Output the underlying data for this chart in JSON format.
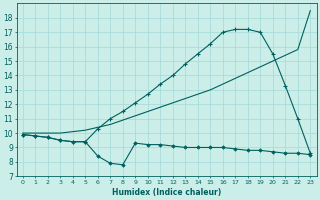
{
  "xlabel": "Humidex (Indice chaleur)",
  "bg_color": "#cceee8",
  "line_color": "#006060",
  "grid_color": "#aaddda",
  "xlim": [
    -0.5,
    23.5
  ],
  "ylim": [
    7,
    19
  ],
  "xticks": [
    0,
    1,
    2,
    3,
    4,
    5,
    6,
    7,
    8,
    9,
    10,
    11,
    12,
    13,
    14,
    15,
    16,
    17,
    18,
    19,
    20,
    21,
    22,
    23
  ],
  "yticks": [
    7,
    8,
    9,
    10,
    11,
    12,
    13,
    14,
    15,
    16,
    17,
    18
  ],
  "line1_x": [
    0,
    1,
    2,
    3,
    4,
    5,
    6,
    7,
    8,
    9,
    10,
    11,
    12,
    13,
    14,
    15,
    16,
    17,
    18,
    19,
    20,
    21,
    22,
    23
  ],
  "line1_y": [
    9.9,
    9.8,
    9.7,
    9.5,
    9.4,
    9.4,
    8.4,
    7.9,
    7.8,
    9.3,
    9.2,
    9.2,
    9.1,
    9.0,
    9.0,
    9.0,
    9.0,
    8.9,
    8.8,
    8.8,
    8.7,
    8.6,
    8.6,
    8.5
  ],
  "line2_x": [
    0,
    1,
    2,
    3,
    4,
    5,
    6,
    7,
    8,
    9,
    10,
    11,
    12,
    13,
    14,
    15,
    16,
    17,
    18,
    19,
    20,
    21,
    22,
    23
  ],
  "line2_y": [
    10.0,
    10.0,
    10.0,
    10.0,
    10.1,
    10.2,
    10.4,
    10.6,
    10.9,
    11.2,
    11.5,
    11.8,
    12.1,
    12.4,
    12.7,
    13.0,
    13.4,
    13.8,
    14.2,
    14.6,
    15.0,
    15.4,
    15.8,
    18.5
  ],
  "line3_x": [
    0,
    1,
    2,
    3,
    4,
    5,
    6,
    7,
    8,
    9,
    10,
    11,
    12,
    13,
    14,
    15,
    16,
    17,
    18,
    19,
    20,
    21,
    22,
    23
  ],
  "line3_y": [
    9.9,
    9.8,
    9.7,
    9.5,
    9.4,
    9.4,
    10.3,
    11.0,
    11.5,
    12.1,
    12.7,
    13.4,
    14.0,
    14.8,
    15.5,
    16.2,
    17.0,
    17.2,
    17.2,
    17.0,
    15.5,
    13.3,
    11.0,
    8.6
  ]
}
